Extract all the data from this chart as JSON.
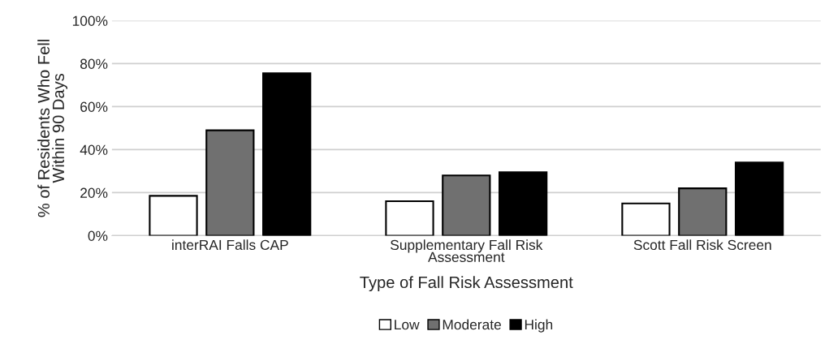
{
  "chart_data": {
    "type": "bar",
    "xlabel": "Type of Fall Risk Assessment",
    "ylabel": "% of Residents Who Fell\nWithin 90 Days",
    "categories": [
      "interRAI Falls CAP",
      "Supplementary Fall Risk\nAssessment",
      "Scott Fall Risk Screen"
    ],
    "series": [
      {
        "name": "Low",
        "color": "#ffffff",
        "values": [
          18.5,
          16,
          15
        ]
      },
      {
        "name": "Moderate",
        "color": "#707070",
        "values": [
          49,
          28,
          22
        ]
      },
      {
        "name": "High",
        "color": "#000000",
        "values": [
          75.5,
          29.5,
          34
        ]
      }
    ],
    "ylim": [
      0,
      100
    ],
    "yticks": [
      {
        "value": 0,
        "label": "0%"
      },
      {
        "value": 20,
        "label": "20%"
      },
      {
        "value": 40,
        "label": "40%"
      },
      {
        "value": 60,
        "label": "60%"
      },
      {
        "value": 80,
        "label": "80%"
      },
      {
        "value": 100,
        "label": "100%"
      }
    ],
    "grid": "y",
    "legend": "bottom"
  }
}
